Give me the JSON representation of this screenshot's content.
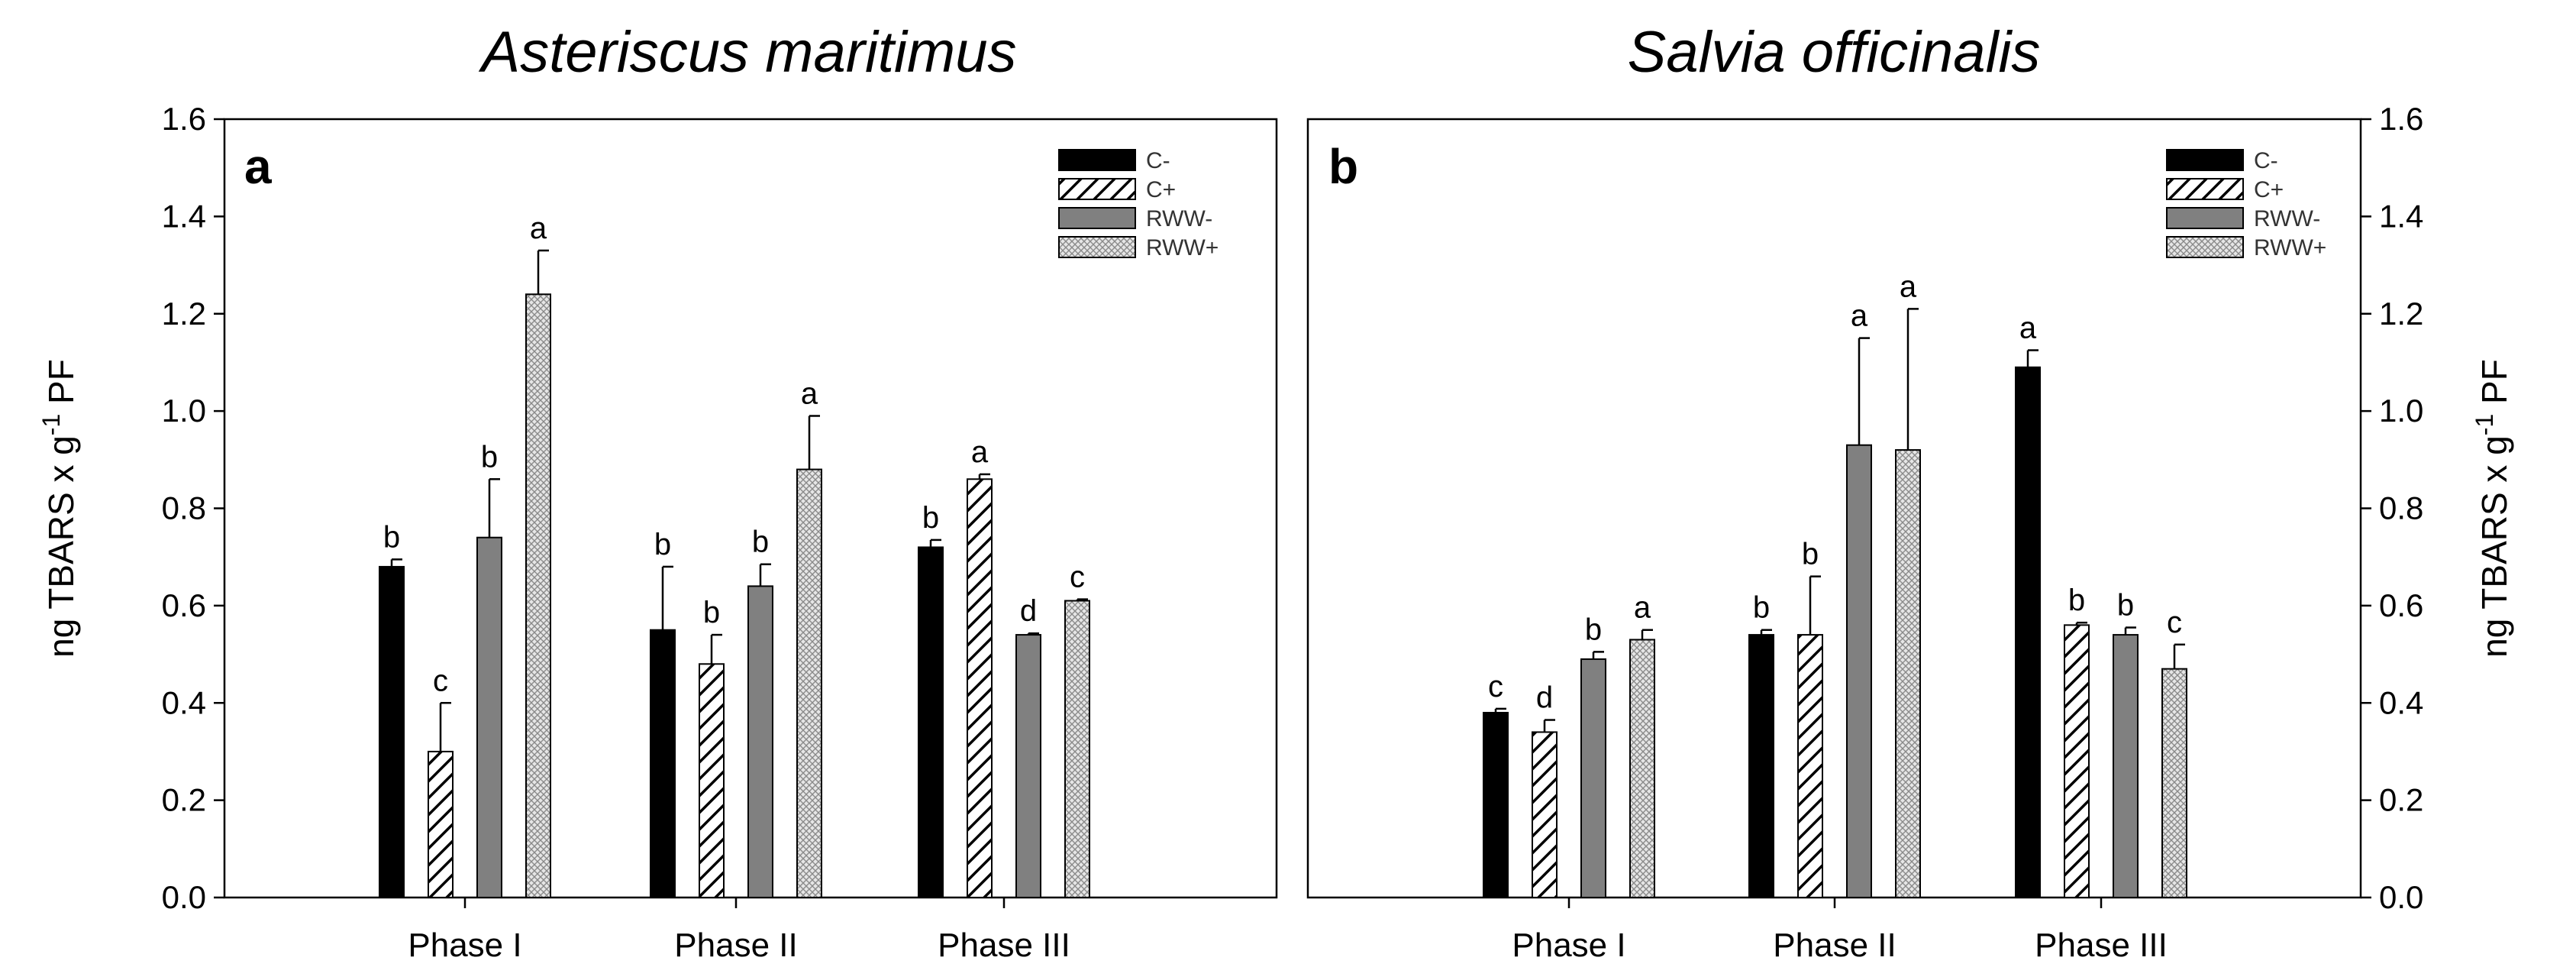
{
  "chart_data": [
    {
      "type": "bar",
      "panel": "a",
      "title": "Asteriscus maritimus",
      "ylabel": "ng TBARS x g-1 PF",
      "ylim": [
        0,
        1.6
      ],
      "yticks": [
        "0.0",
        "0.2",
        "0.4",
        "0.6",
        "0.8",
        "1.0",
        "1.2",
        "1.4",
        "1.6"
      ],
      "categories": [
        "Phase I",
        "Phase II",
        "Phase III"
      ],
      "legend_position": "top-right",
      "series": [
        {
          "name": "C-",
          "pattern": "solid-black",
          "values": [
            0.68,
            0.55,
            0.72
          ],
          "errors": [
            0.015,
            0.13,
            0.015
          ],
          "letters": [
            "b",
            "b",
            "b"
          ]
        },
        {
          "name": "C+",
          "pattern": "hatch",
          "values": [
            0.3,
            0.48,
            0.86
          ],
          "errors": [
            0.1,
            0.06,
            0.01
          ],
          "letters": [
            "c",
            "b",
            "a"
          ]
        },
        {
          "name": "RWW-",
          "pattern": "solid-gray",
          "values": [
            0.74,
            0.64,
            0.54
          ],
          "errors": [
            0.12,
            0.045,
            0.003
          ],
          "letters": [
            "b",
            "b",
            "d"
          ]
        },
        {
          "name": "RWW+",
          "pattern": "crosshatch",
          "values": [
            1.24,
            0.88,
            0.61
          ],
          "errors": [
            0.09,
            0.11,
            0.003
          ],
          "letters": [
            "a",
            "a",
            "c"
          ]
        }
      ]
    },
    {
      "type": "bar",
      "panel": "b",
      "title": "Salvia officinalis",
      "ylabel": "ng TBARS x g-1 PF",
      "ylim": [
        0,
        1.6
      ],
      "yticks": [
        "0.0",
        "0.2",
        "0.4",
        "0.6",
        "0.8",
        "1.0",
        "1.2",
        "1.4",
        "1.6"
      ],
      "categories": [
        "Phase I",
        "Phase II",
        "Phase III"
      ],
      "legend_position": "top-right",
      "series": [
        {
          "name": "C-",
          "pattern": "solid-black",
          "values": [
            0.38,
            0.54,
            1.09
          ],
          "errors": [
            0.008,
            0.01,
            0.035
          ],
          "letters": [
            "c",
            "b",
            "a"
          ]
        },
        {
          "name": "C+",
          "pattern": "hatch",
          "values": [
            0.34,
            0.54,
            0.56
          ],
          "errors": [
            0.025,
            0.12,
            0.005
          ],
          "letters": [
            "d",
            "b",
            "b"
          ]
        },
        {
          "name": "RWW-",
          "pattern": "solid-gray",
          "values": [
            0.49,
            0.93,
            0.54
          ],
          "errors": [
            0.015,
            0.22,
            0.015
          ],
          "letters": [
            "b",
            "a",
            "b"
          ]
        },
        {
          "name": "RWW+",
          "pattern": "crosshatch",
          "values": [
            0.53,
            0.92,
            0.47
          ],
          "errors": [
            0.02,
            0.29,
            0.05
          ],
          "letters": [
            "a",
            "a",
            "c"
          ]
        }
      ]
    }
  ]
}
